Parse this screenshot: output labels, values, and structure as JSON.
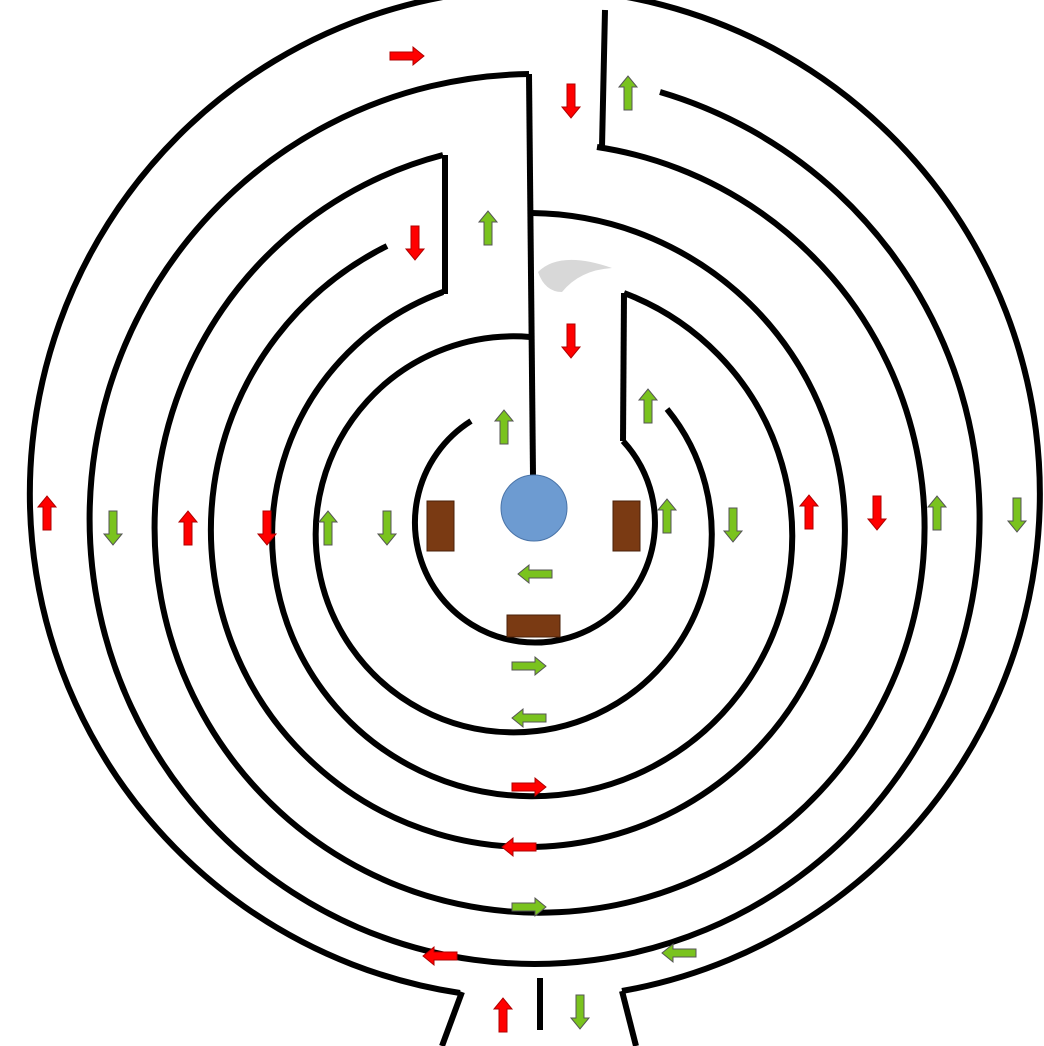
{
  "diagram": {
    "kind": "labyrinth",
    "center_marker": {
      "name": "goal-circle",
      "color": "#6d9bd1"
    },
    "blocks": [
      {
        "name": "block-left",
        "color": "#7a3a13"
      },
      {
        "name": "block-right",
        "color": "#7a3a13"
      },
      {
        "name": "block-bottom",
        "color": "#7a3a13"
      }
    ],
    "colors": {
      "forward": "#ff0000",
      "backward": "#7ac31e",
      "outline": "#555555",
      "wall": "#000000",
      "shadow": "#d8d8d8"
    },
    "arrows": [
      {
        "color": "red",
        "dir": "right"
      },
      {
        "color": "red",
        "dir": "down"
      },
      {
        "color": "green",
        "dir": "up"
      },
      {
        "color": "red",
        "dir": "down"
      },
      {
        "color": "green",
        "dir": "up"
      },
      {
        "color": "red",
        "dir": "down"
      },
      {
        "color": "green",
        "dir": "up"
      },
      {
        "color": "green",
        "dir": "up"
      },
      {
        "color": "red",
        "dir": "up"
      },
      {
        "color": "green",
        "dir": "down"
      },
      {
        "color": "red",
        "dir": "up"
      },
      {
        "color": "red",
        "dir": "down"
      },
      {
        "color": "green",
        "dir": "up"
      },
      {
        "color": "green",
        "dir": "down"
      },
      {
        "color": "green",
        "dir": "up"
      },
      {
        "color": "green",
        "dir": "down"
      },
      {
        "color": "red",
        "dir": "up"
      },
      {
        "color": "red",
        "dir": "down"
      },
      {
        "color": "green",
        "dir": "up"
      },
      {
        "color": "green",
        "dir": "down"
      },
      {
        "color": "green",
        "dir": "left"
      },
      {
        "color": "green",
        "dir": "right"
      },
      {
        "color": "green",
        "dir": "left"
      },
      {
        "color": "red",
        "dir": "right"
      },
      {
        "color": "red",
        "dir": "left"
      },
      {
        "color": "green",
        "dir": "right"
      },
      {
        "color": "red",
        "dir": "left"
      },
      {
        "color": "green",
        "dir": "left"
      },
      {
        "color": "red",
        "dir": "up"
      },
      {
        "color": "green",
        "dir": "down"
      }
    ]
  }
}
